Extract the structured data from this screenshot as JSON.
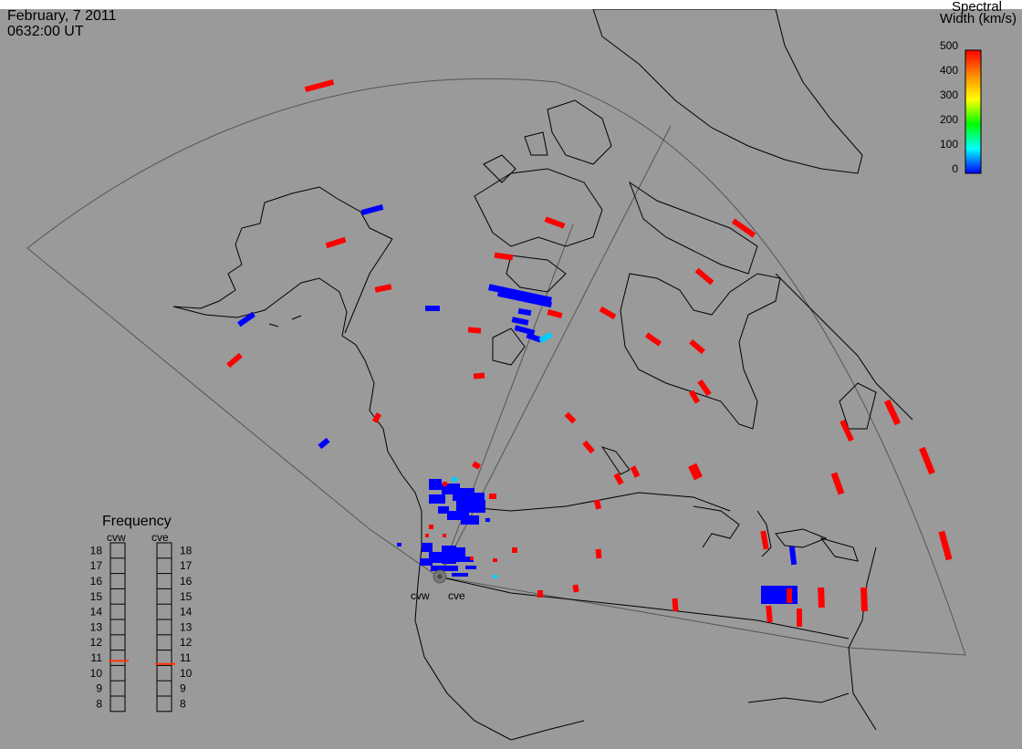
{
  "header": {
    "date": "February, 7 2011",
    "time": "0632:00 UT"
  },
  "color_scale": {
    "title_line1": "Spectral",
    "title_line2": "Width (km/s)",
    "ticks": [
      "500",
      "400",
      "300",
      "200",
      "100",
      "0"
    ],
    "range": [
      0,
      500
    ],
    "colors": [
      "#ff0000",
      "#ff8800",
      "#ffff00",
      "#00ff00",
      "#00ffff",
      "#0000ff"
    ]
  },
  "frequency_panel": {
    "title": "Frequency",
    "radars": [
      {
        "name": "cvw",
        "current_mhz": 10.8
      },
      {
        "name": "cve",
        "current_mhz": 10.6
      }
    ],
    "ticks": [
      "18",
      "17",
      "16",
      "15",
      "14",
      "13",
      "12",
      "11",
      "10",
      "9",
      "8"
    ],
    "range_mhz": [
      8,
      18
    ],
    "marker_color": "#ff3300"
  },
  "radar_sites": [
    {
      "name": "cvw"
    },
    {
      "name": "cve"
    }
  ],
  "colors": {
    "map_background": "#9a9a9a",
    "coast": "#000000",
    "fov_outline": "#555555",
    "low_width": "#0000ff",
    "high_width": "#ff0000",
    "mid_width": "#00ccff"
  }
}
